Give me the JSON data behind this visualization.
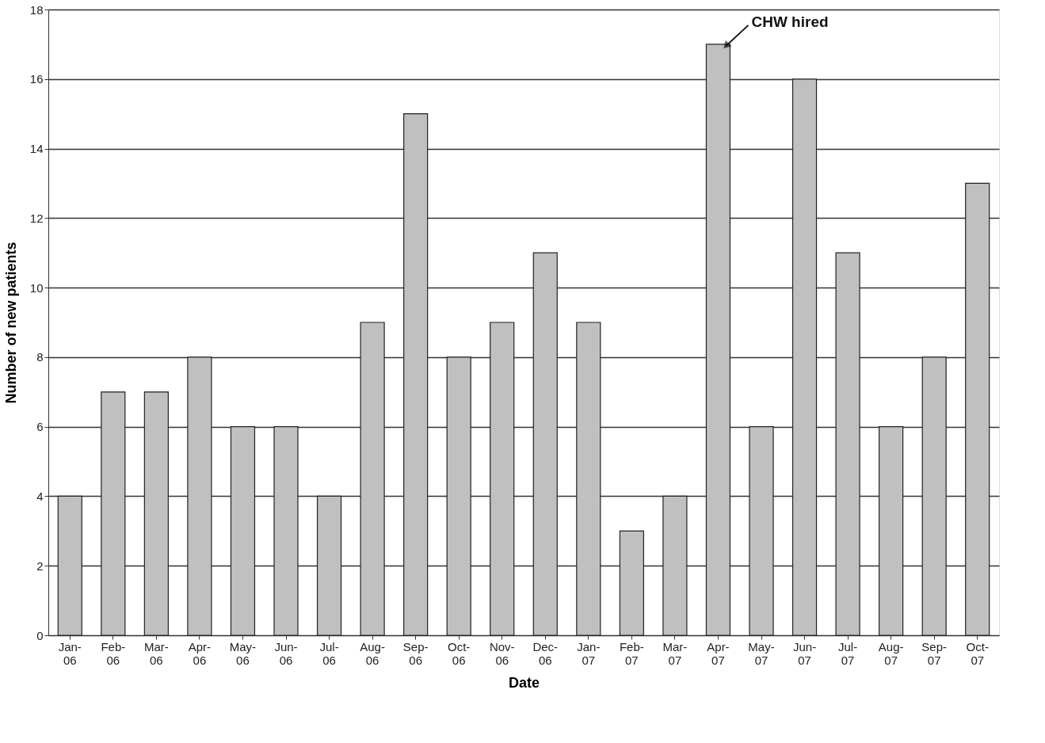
{
  "chart_data": {
    "type": "bar",
    "xlabel": "Date",
    "ylabel": "Number of new patients",
    "categories": [
      "Jan-06",
      "Feb-06",
      "Mar-06",
      "Apr-06",
      "May-06",
      "Jun-06",
      "Jul-06",
      "Aug-06",
      "Sep-06",
      "Oct-06",
      "Nov-06",
      "Dec-06",
      "Jan-07",
      "Feb-07",
      "Mar-07",
      "Apr-07",
      "May-07",
      "Jun-07",
      "Jul-07",
      "Aug-07",
      "Sep-07",
      "Oct-07"
    ],
    "values": [
      4,
      7,
      7,
      8,
      6,
      6,
      4,
      9,
      15,
      8,
      9,
      11,
      9,
      3,
      4,
      17,
      6,
      16,
      11,
      6,
      8,
      13
    ],
    "color": "#c0c0c0",
    "ylim": [
      0,
      18
    ],
    "yticks": [
      0,
      2,
      4,
      6,
      8,
      10,
      12,
      14,
      16,
      18
    ],
    "grid": "y",
    "annotations": [
      {
        "text": "CHW hired",
        "x": "Apr-07",
        "y": 17
      }
    ]
  }
}
